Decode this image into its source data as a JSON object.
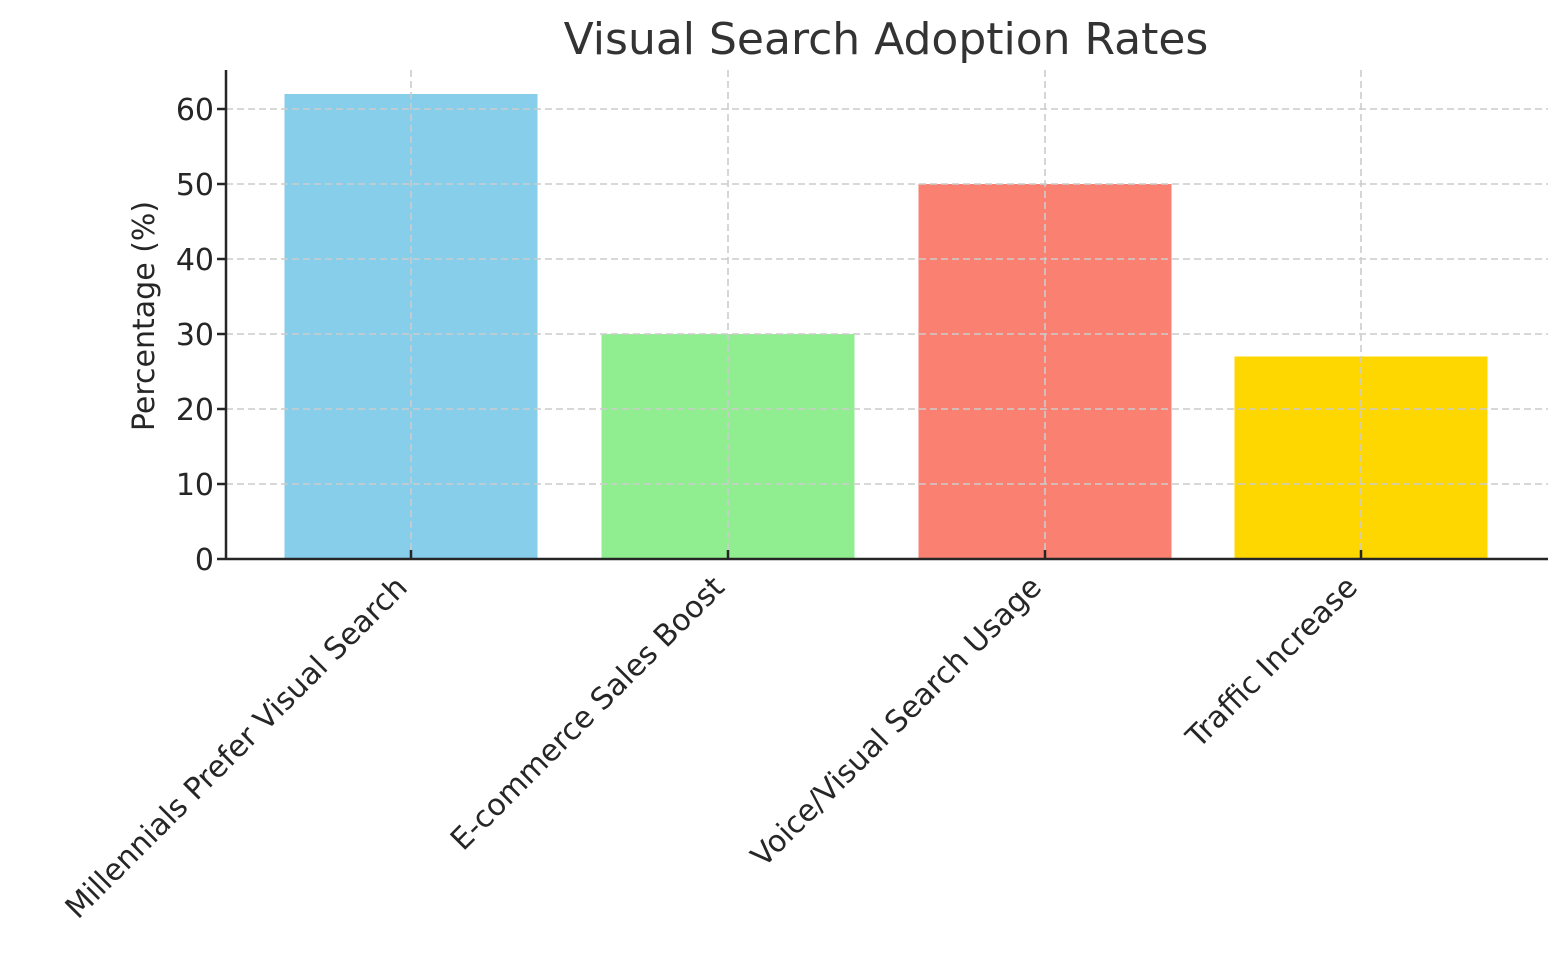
{
  "chart_data": {
    "type": "bar",
    "title": "Visual Search Adoption Rates",
    "xlabel": "",
    "ylabel": "Percentage (%)",
    "categories": [
      "Millennials Prefer Visual Search",
      "E-commerce Sales Boost",
      "Voice/Visual Search Usage",
      "Traffic Increase"
    ],
    "values": [
      62,
      30,
      50,
      27
    ],
    "colors": [
      "#87ceeb",
      "#90ee90",
      "#fa8072",
      "#ffd700"
    ],
    "ylim": [
      0,
      65
    ],
    "yticks": [
      0,
      10,
      20,
      30,
      40,
      50,
      60
    ],
    "grid": true,
    "legend": null
  }
}
